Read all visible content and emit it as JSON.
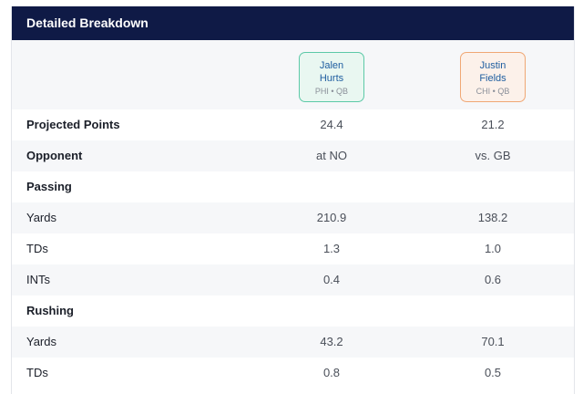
{
  "header": {
    "title": "Detailed Breakdown"
  },
  "players": [
    {
      "first": "Jalen",
      "last": "Hurts",
      "meta": "PHI • QB",
      "accent": "#5cc9a7"
    },
    {
      "first": "Justin",
      "last": "Fields",
      "meta": "CHI • QB",
      "accent": "#f0a774"
    }
  ],
  "rows": [
    {
      "label": "Projected Points",
      "v1": "24.4",
      "v2": "21.2"
    },
    {
      "label": "Opponent",
      "v1": "at NO",
      "v2": "vs. GB"
    },
    {
      "label": "Passing",
      "v1": "",
      "v2": ""
    },
    {
      "label": "Yards",
      "v1": "210.9",
      "v2": "138.2"
    },
    {
      "label": "TDs",
      "v1": "1.3",
      "v2": "1.0"
    },
    {
      "label": "INTs",
      "v1": "0.4",
      "v2": "0.6"
    },
    {
      "label": "Rushing",
      "v1": "",
      "v2": ""
    },
    {
      "label": "Yards",
      "v1": "43.2",
      "v2": "70.1"
    },
    {
      "label": "TDs",
      "v1": "0.8",
      "v2": "0.5"
    }
  ]
}
